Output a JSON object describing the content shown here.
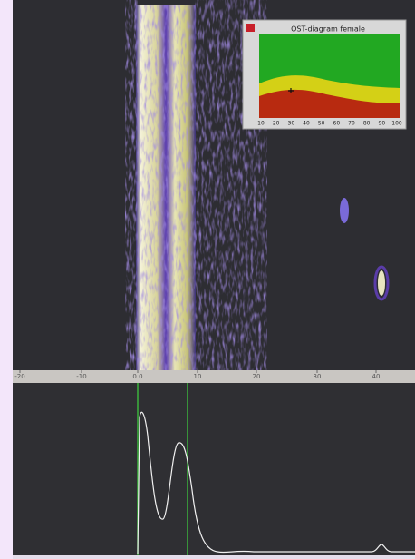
{
  "inset": {
    "title": "OST-diagram female",
    "x_axis_labels": [
      "10",
      "20",
      "30",
      "40",
      "50",
      "60",
      "70",
      "80",
      "90",
      "100"
    ]
  },
  "ruler": {
    "labels": [
      "-20",
      "-10",
      "0.0",
      "10",
      "20",
      "30",
      "40"
    ]
  }
}
